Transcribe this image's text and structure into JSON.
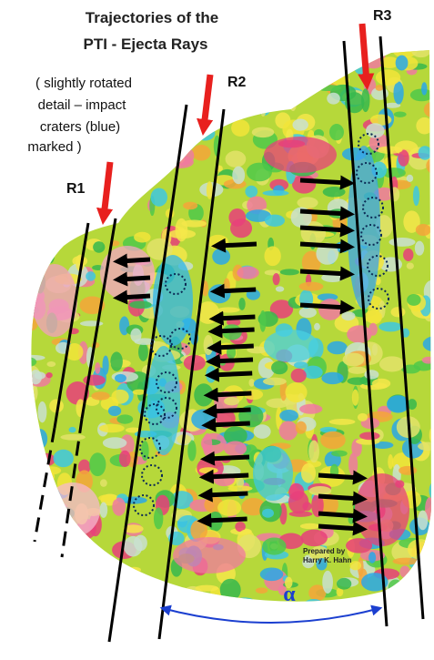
{
  "title": [
    "Trajectories of the",
    "PTI - Ejecta Rays"
  ],
  "note": [
    "( slightly rotated",
    "detail – impact",
    "craters (blue)",
    "marked )"
  ],
  "rays": [
    "R1",
    "R2",
    "R3"
  ],
  "angle_label": "α",
  "credit": [
    "Prepared by",
    "Harry K. Hahn"
  ]
}
